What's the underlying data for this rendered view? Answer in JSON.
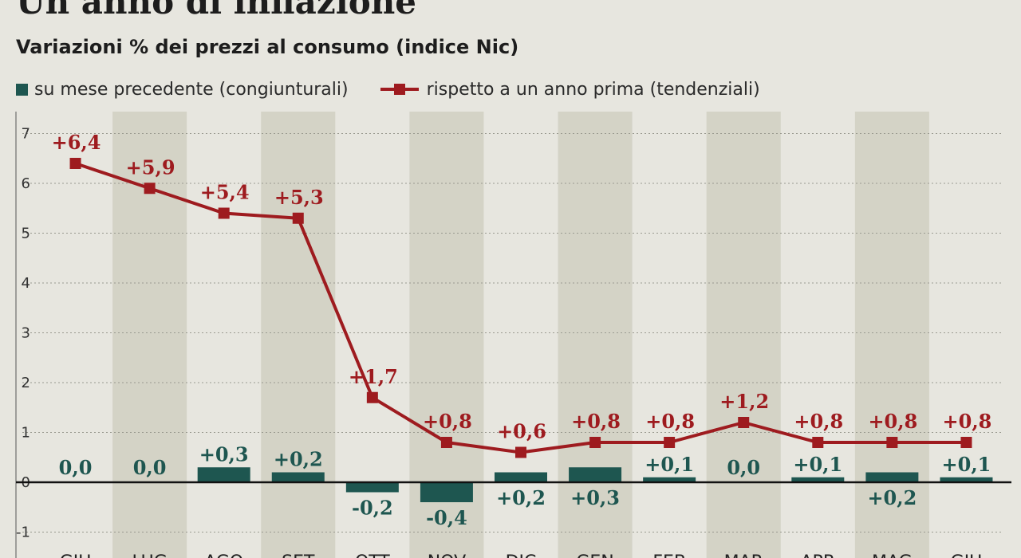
{
  "title": "Un anno di inflazione",
  "subtitle": "Variazioni % dei prezzi al consumo (indice Nic)",
  "legend": {
    "bars": "su mese precedente (congiunturali)",
    "line": "rispetto a un anno prima (tendenziali)"
  },
  "colors": {
    "bar": "#1e5650",
    "line": "#9e1b1f",
    "band": "#d4d3c6",
    "background": "#e7e6df"
  },
  "chart_data": {
    "type": "bar",
    "categories": [
      "GIU",
      "LUG",
      "AGO",
      "SET",
      "OTT",
      "NOV",
      "DIC",
      "GEN",
      "FEB",
      "MAR",
      "APR",
      "MAG",
      "GIU"
    ],
    "series": [
      {
        "name": "su mese precedente (congiunturali)",
        "type": "bar",
        "values": [
          0.0,
          0.0,
          0.3,
          0.2,
          -0.2,
          -0.4,
          0.2,
          0.3,
          0.1,
          0.0,
          0.1,
          0.2,
          0.1
        ],
        "labels": [
          "0,0",
          "0,0",
          "+0,3",
          "+0,2",
          "-0,2",
          "-0,4",
          "+0,2",
          "+0,3",
          "+0,1",
          "0,0",
          "+0,1",
          "+0,2",
          "+0,1"
        ]
      },
      {
        "name": "rispetto a un anno prima (tendenziali)",
        "type": "line",
        "values": [
          6.4,
          5.9,
          5.4,
          5.3,
          1.7,
          0.8,
          0.6,
          0.8,
          0.8,
          1.2,
          0.8,
          0.8,
          0.8
        ],
        "labels": [
          "+6,4",
          "+5,9",
          "+5,4",
          "+5,3",
          "+1,7",
          "+0,8",
          "+0,6",
          "+0,8",
          "+0,8",
          "+1,2",
          "+0,8",
          "+0,8",
          "+0,8"
        ]
      }
    ],
    "ylim": [
      -1,
      7
    ],
    "yticks": [
      -1,
      0,
      1,
      2,
      3,
      4,
      5,
      6,
      7
    ],
    "grid": true,
    "legend_position": "top-left"
  }
}
